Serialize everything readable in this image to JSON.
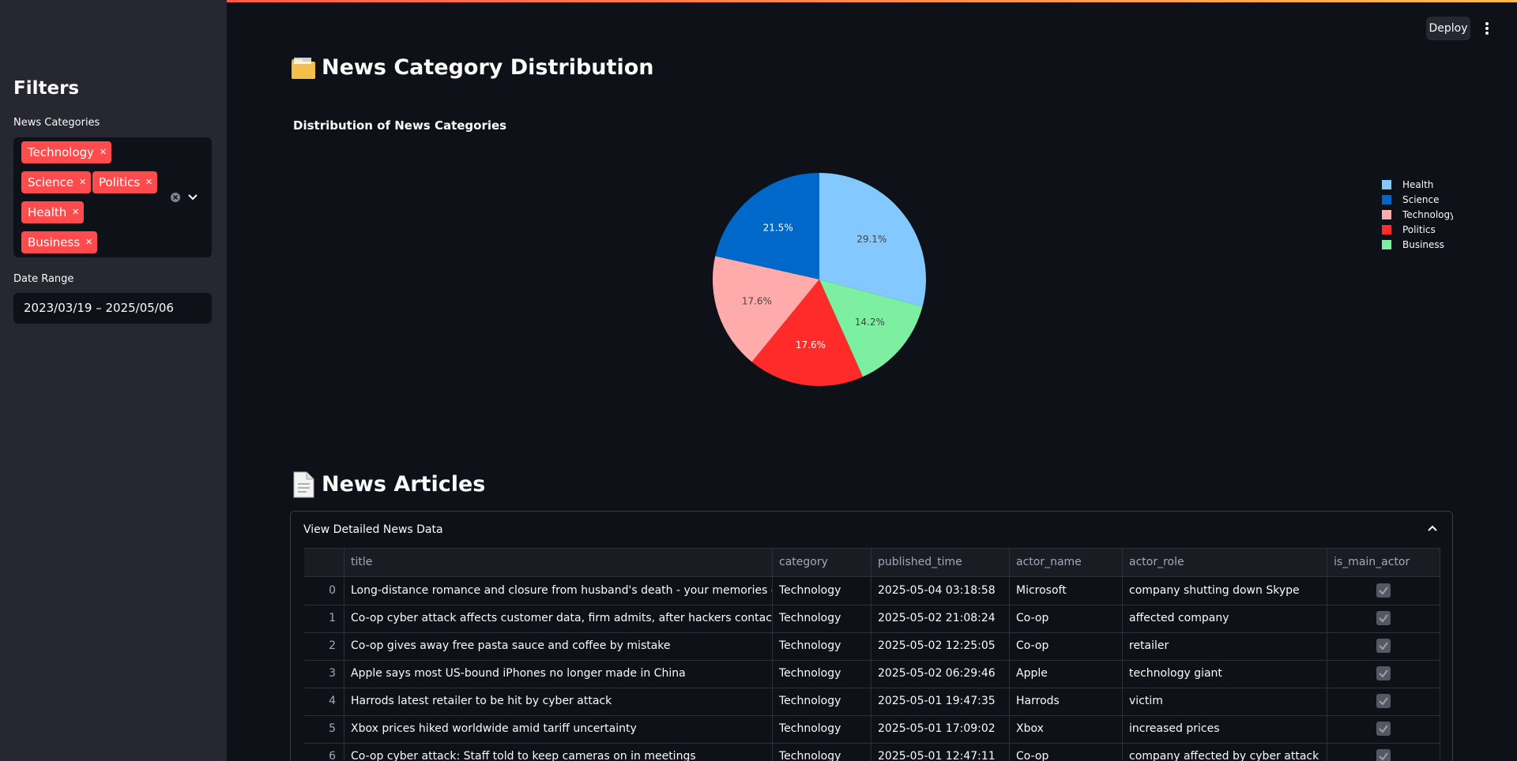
{
  "header": {
    "deploy": "Deploy"
  },
  "sidebar": {
    "title": "Filters",
    "categories_label": "News Categories",
    "tags": [
      "Technology",
      "Science",
      "Politics",
      "Health",
      "Business"
    ],
    "date_label": "Date Range",
    "date_value": "2023/03/19 – 2025/05/06"
  },
  "section1": {
    "heading": "News Category Distribution"
  },
  "chart_data": {
    "type": "pie",
    "title": "Distribution of News Categories",
    "categories": [
      "Health",
      "Science",
      "Technology",
      "Politics",
      "Business"
    ],
    "values": [
      29.1,
      21.5,
      17.6,
      17.6,
      14.2
    ],
    "value_labels": [
      "29.1%",
      "21.5%",
      "17.6%",
      "17.6%",
      "14.2%"
    ],
    "colors": [
      "#83c9ff",
      "#0068c9",
      "#ffabab",
      "#ff2b2b",
      "#7defa1"
    ],
    "legend": "top-right"
  },
  "section2": {
    "heading": "News Articles",
    "expander": "View Detailed News Data"
  },
  "table": {
    "columns": [
      "",
      "title",
      "category",
      "published_time",
      "actor_name",
      "actor_role",
      "is_main_actor"
    ],
    "rows": [
      [
        "0",
        "Long-distance romance and closure from husband's death - your memories of Skype",
        "Technology",
        "2025-05-04 03:18:58",
        "Microsoft",
        "company shutting down Skype",
        true
      ],
      [
        "1",
        "Co-op cyber attack affects customer data, firm admits, after hackers contact BBC",
        "Technology",
        "2025-05-02 21:08:24",
        "Co-op",
        "affected company",
        true
      ],
      [
        "2",
        "Co-op gives away free pasta sauce and coffee by mistake",
        "Technology",
        "2025-05-02 12:25:05",
        "Co-op",
        "retailer",
        true
      ],
      [
        "3",
        "Apple says most US-bound iPhones no longer made in China",
        "Technology",
        "2025-05-02 06:29:46",
        "Apple",
        "technology giant",
        true
      ],
      [
        "4",
        "Harrods latest retailer to be hit by cyber attack",
        "Technology",
        "2025-05-01 19:47:35",
        "Harrods",
        "victim",
        true
      ],
      [
        "5",
        "Xbox prices hiked worldwide amid tariff uncertainty",
        "Technology",
        "2025-05-01 17:09:02",
        "Xbox",
        "increased prices",
        true
      ],
      [
        "6",
        "Co-op cyber attack: Staff told to keep cameras on in meetings",
        "Technology",
        "2025-05-01 12:47:11",
        "Co-op",
        "company affected by cyber attack",
        true
      ]
    ]
  }
}
